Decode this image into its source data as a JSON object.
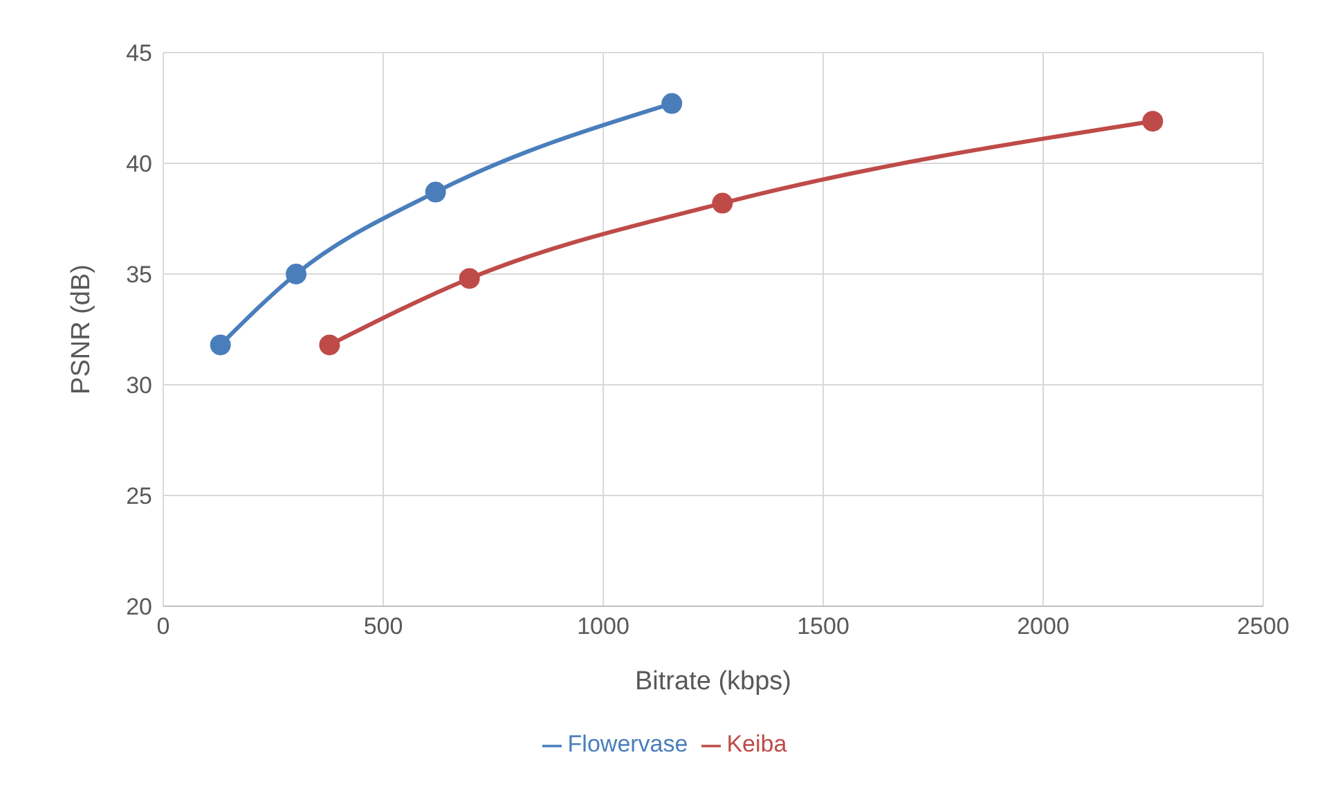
{
  "chart_data": {
    "type": "line",
    "xlabel": "Bitrate (kbps)",
    "ylabel": "PSNR (dB)",
    "series": [
      {
        "name": "Flowervase",
        "color": "#4a7ebb",
        "x": [
          130,
          302,
          619,
          1156
        ],
        "values": [
          31.8,
          35.0,
          38.7,
          42.7
        ]
      },
      {
        "name": "Keiba",
        "color": "#be4b48",
        "x": [
          378,
          696,
          1271,
          2249
        ],
        "values": [
          31.8,
          34.8,
          38.2,
          41.9
        ]
      }
    ],
    "xlim": [
      0,
      2500
    ],
    "xticks": [
      0,
      500,
      1000,
      1500,
      2000,
      2500
    ],
    "ylim": [
      20,
      45
    ],
    "yticks": [
      20,
      25,
      30,
      35,
      40,
      45
    ],
    "grid": true,
    "legend": "bottom",
    "marker": "circle",
    "line_style": "solid"
  }
}
